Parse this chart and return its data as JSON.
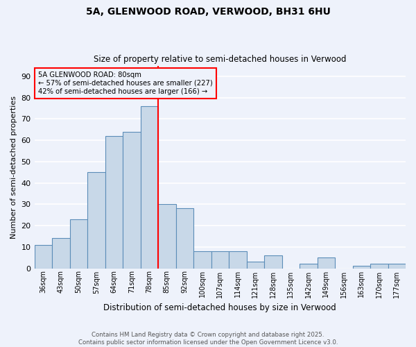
{
  "title1": "5A, GLENWOOD ROAD, VERWOOD, BH31 6HU",
  "title2": "Size of property relative to semi-detached houses in Verwood",
  "xlabel": "Distribution of semi-detached houses by size in Verwood",
  "ylabel": "Number of semi-detached properties",
  "categories": [
    "36sqm",
    "43sqm",
    "50sqm",
    "57sqm",
    "64sqm",
    "71sqm",
    "78sqm",
    "85sqm",
    "92sqm",
    "100sqm",
    "107sqm",
    "114sqm",
    "121sqm",
    "128sqm",
    "135sqm",
    "142sqm",
    "149sqm",
    "156sqm",
    "163sqm",
    "170sqm",
    "177sqm"
  ],
  "values": [
    11,
    14,
    23,
    45,
    62,
    64,
    76,
    30,
    28,
    8,
    8,
    8,
    3,
    6,
    0,
    2,
    5,
    0,
    1,
    2,
    2
  ],
  "bar_color": "#c8d8e8",
  "bar_edge_color": "#5b8db8",
  "vline_x": 6.5,
  "annotation_title": "5A GLENWOOD ROAD: 80sqm",
  "annotation_line1": "← 57% of semi-detached houses are smaller (227)",
  "annotation_line2": "42% of semi-detached houses are larger (166) →",
  "ylim": [
    0,
    95
  ],
  "yticks": [
    0,
    10,
    20,
    30,
    40,
    50,
    60,
    70,
    80,
    90
  ],
  "footer1": "Contains HM Land Registry data © Crown copyright and database right 2025.",
  "footer2": "Contains public sector information licensed under the Open Government Licence v3.0.",
  "bg_color": "#eef2fb",
  "grid_color": "#ffffff"
}
